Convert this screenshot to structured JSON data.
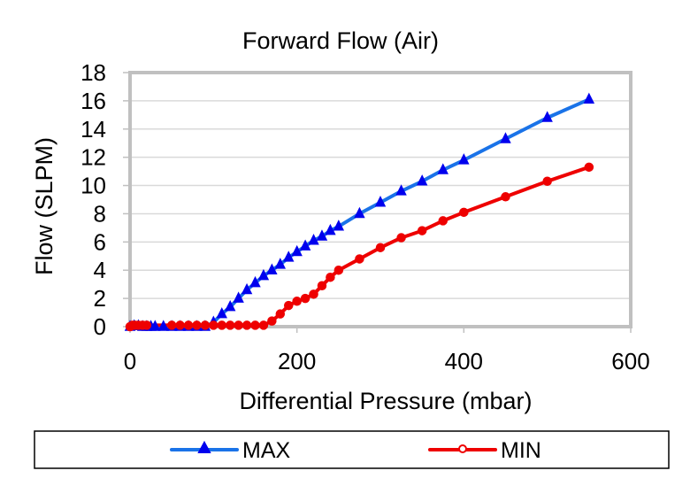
{
  "chart_data": {
    "type": "line",
    "title": "Forward Flow (Air)",
    "xlabel": "Differential Pressure (mbar)",
    "ylabel": "Flow (SLPM)",
    "xlim": [
      0,
      600
    ],
    "ylim": [
      0,
      18
    ],
    "x_ticks": [
      0,
      200,
      400,
      600
    ],
    "y_ticks": [
      0,
      2,
      4,
      6,
      8,
      10,
      12,
      14,
      16,
      18
    ],
    "x_tick_labels": [
      "0",
      "200",
      "400",
      "600"
    ],
    "y_tick_labels": [
      "0",
      "2",
      "4",
      "6",
      "8",
      "10",
      "12",
      "14",
      "16",
      "18"
    ],
    "grid": "horizontal",
    "legend_position": "bottom",
    "series": [
      {
        "name": "MAX",
        "color": "#1a73e8",
        "marker_color": "#0000ee",
        "marker": "triangle",
        "x": [
          0,
          5,
          10,
          15,
          20,
          25,
          30,
          40,
          50,
          60,
          70,
          80,
          90,
          100,
          110,
          120,
          130,
          140,
          150,
          160,
          170,
          180,
          190,
          200,
          210,
          220,
          230,
          240,
          250,
          275,
          300,
          325,
          350,
          375,
          400,
          450,
          500,
          550
        ],
        "y": [
          0,
          0.05,
          0.05,
          0,
          0,
          0,
          0,
          0,
          0,
          0,
          0,
          0,
          0,
          0.3,
          0.9,
          1.4,
          2.0,
          2.6,
          3.1,
          3.6,
          4.0,
          4.4,
          4.9,
          5.3,
          5.7,
          6.1,
          6.4,
          6.8,
          7.1,
          8.0,
          8.8,
          9.6,
          10.3,
          11.1,
          11.8,
          13.3,
          14.8,
          16.1
        ]
      },
      {
        "name": "MIN",
        "color": "#ee0000",
        "marker_color": "#ee0000",
        "marker": "circle",
        "x": [
          0,
          3,
          6,
          10,
          15,
          20,
          50,
          60,
          70,
          80,
          90,
          100,
          110,
          120,
          130,
          140,
          150,
          160,
          170,
          180,
          190,
          200,
          210,
          220,
          230,
          240,
          250,
          275,
          300,
          325,
          350,
          375,
          400,
          450,
          500,
          550
        ],
        "y": [
          0,
          0.1,
          0.1,
          0.1,
          0.1,
          0.1,
          0.1,
          0.1,
          0.1,
          0.1,
          0.1,
          0.1,
          0.1,
          0.1,
          0.1,
          0.1,
          0.1,
          0.1,
          0.4,
          0.9,
          1.5,
          1.8,
          2.0,
          2.3,
          2.9,
          3.5,
          4.0,
          4.8,
          5.6,
          6.3,
          6.8,
          7.5,
          8.1,
          9.2,
          10.3,
          11.3
        ]
      }
    ]
  }
}
